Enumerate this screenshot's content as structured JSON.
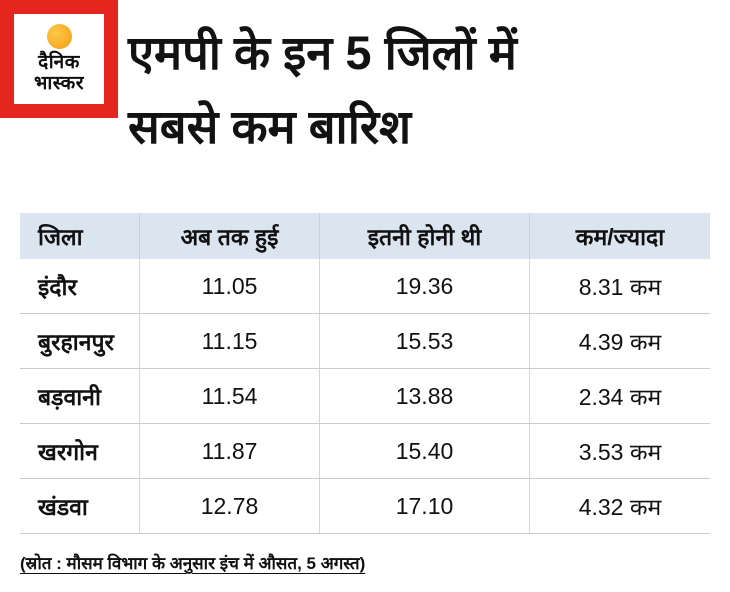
{
  "brand": {
    "name_line1": "दैनिक",
    "name_line2": "भास्कर",
    "red": "#e5261f",
    "sun_color": "#f49d13"
  },
  "header": {
    "title_line1": "एमपी के इन 5 जिलों में",
    "title_line2": "सबसे कम बारिश"
  },
  "chart_data": {
    "type": "table",
    "title": "एमपी के इन 5 जिलों में सबसे कम बारिश",
    "columns": [
      "जिला",
      "अब तक हुई",
      "इतनी होनी थी",
      "कम/ज्यादा"
    ],
    "rows": [
      [
        "इंदौर",
        "11.05",
        "19.36",
        "8.31 कम"
      ],
      [
        "बुरहानपुर",
        "11.15",
        "15.53",
        "4.39 कम"
      ],
      [
        "बड़वानी",
        "11.54",
        "13.88",
        "2.34 कम"
      ],
      [
        "खरगोन",
        "11.87",
        "15.40",
        "3.53 कम"
      ],
      [
        "खंडवा",
        "12.78",
        "17.10",
        "4.32 कम"
      ]
    ],
    "header_bg": "#dbe5ef",
    "source": "(स्रोत : मौसम विभाग के अनुसार इंच में औसत, 5 अगस्त)"
  },
  "footer": {
    "source_note": "(स्रोत : मौसम विभाग के अनुसार इंच में औसत, 5 अगस्त)"
  }
}
